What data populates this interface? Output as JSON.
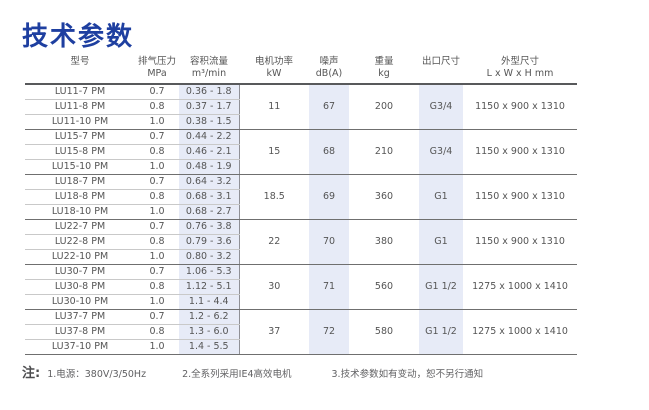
{
  "page": {
    "title": "技术参数"
  },
  "colors": {
    "title_blue": "#1e3fa0",
    "column_band": "#e7ebf7",
    "text": "#555555"
  },
  "table": {
    "headers": [
      {
        "label": "型号",
        "unit": ""
      },
      {
        "label": "排气压力",
        "unit": "MPa"
      },
      {
        "label": "容积流量",
        "unit": "m³/min"
      },
      {
        "label": "电机功率",
        "unit": "kW"
      },
      {
        "label": "噪声",
        "unit": "dB(A)"
      },
      {
        "label": "重量",
        "unit": "kg"
      },
      {
        "label": "出口尺寸",
        "unit": ""
      },
      {
        "label": "外型尺寸",
        "unit": "L x W x H  mm"
      }
    ],
    "groups": [
      {
        "rows": [
          {
            "model": "LU11-7 PM",
            "pressure": "0.7",
            "flow": "0.36 - 1.8"
          },
          {
            "model": "LU11-8 PM",
            "pressure": "0.8",
            "flow": "0.37 - 1.7"
          },
          {
            "model": "LU11-10 PM",
            "pressure": "1.0",
            "flow": "0.38 - 1.5"
          }
        ],
        "power": "11",
        "noise": "67",
        "weight": "200",
        "outlet": "G3/4",
        "dimensions": "1150 x 900 x 1310"
      },
      {
        "rows": [
          {
            "model": "LU15-7 PM",
            "pressure": "0.7",
            "flow": "0.44 - 2.2"
          },
          {
            "model": "LU15-8 PM",
            "pressure": "0.8",
            "flow": "0.46 - 2.1"
          },
          {
            "model": "LU15-10 PM",
            "pressure": "1.0",
            "flow": "0.48 - 1.9"
          }
        ],
        "power": "15",
        "noise": "68",
        "weight": "210",
        "outlet": "G3/4",
        "dimensions": "1150 x 900 x 1310"
      },
      {
        "rows": [
          {
            "model": "LU18-7 PM",
            "pressure": "0.7",
            "flow": "0.64 - 3.2"
          },
          {
            "model": "LU18-8 PM",
            "pressure": "0.8",
            "flow": "0.68 - 3.1"
          },
          {
            "model": "LU18-10 PM",
            "pressure": "1.0",
            "flow": "0.68 - 2.7"
          }
        ],
        "power": "18.5",
        "noise": "69",
        "weight": "360",
        "outlet": "G1",
        "dimensions": "1150 x 900 x 1310"
      },
      {
        "rows": [
          {
            "model": "LU22-7 PM",
            "pressure": "0.7",
            "flow": "0.76 - 3.8"
          },
          {
            "model": "LU22-8 PM",
            "pressure": "0.8",
            "flow": "0.79 - 3.6"
          },
          {
            "model": "LU22-10 PM",
            "pressure": "1.0",
            "flow": "0.80 - 3.2"
          }
        ],
        "power": "22",
        "noise": "70",
        "weight": "380",
        "outlet": "G1",
        "dimensions": "1150 x 900 x 1310"
      },
      {
        "rows": [
          {
            "model": "LU30-7 PM",
            "pressure": "0.7",
            "flow": "1.06 - 5.3"
          },
          {
            "model": "LU30-8 PM",
            "pressure": "0.8",
            "flow": "1.12 - 5.1"
          },
          {
            "model": "LU30-10 PM",
            "pressure": "1.0",
            "flow": "1.1 - 4.4"
          }
        ],
        "power": "30",
        "noise": "71",
        "weight": "560",
        "outlet": "G1 1/2",
        "dimensions": "1275 x 1000 x 1410"
      },
      {
        "rows": [
          {
            "model": "LU37-7 PM",
            "pressure": "0.7",
            "flow": "1.2 - 6.2"
          },
          {
            "model": "LU37-8 PM",
            "pressure": "0.8",
            "flow": "1.3 - 6.0"
          },
          {
            "model": "LU37-10 PM",
            "pressure": "1.0",
            "flow": "1.4 - 5.5"
          }
        ],
        "power": "37",
        "noise": "72",
        "weight": "580",
        "outlet": "G1 1/2",
        "dimensions": "1275 x 1000 x 1410"
      }
    ]
  },
  "note": {
    "label": "注:",
    "items": [
      "1.电源：380V/3/50Hz",
      "2.全系列采用IE4高效电机",
      "3.技术参数如有变动，恕不另行通知"
    ]
  }
}
